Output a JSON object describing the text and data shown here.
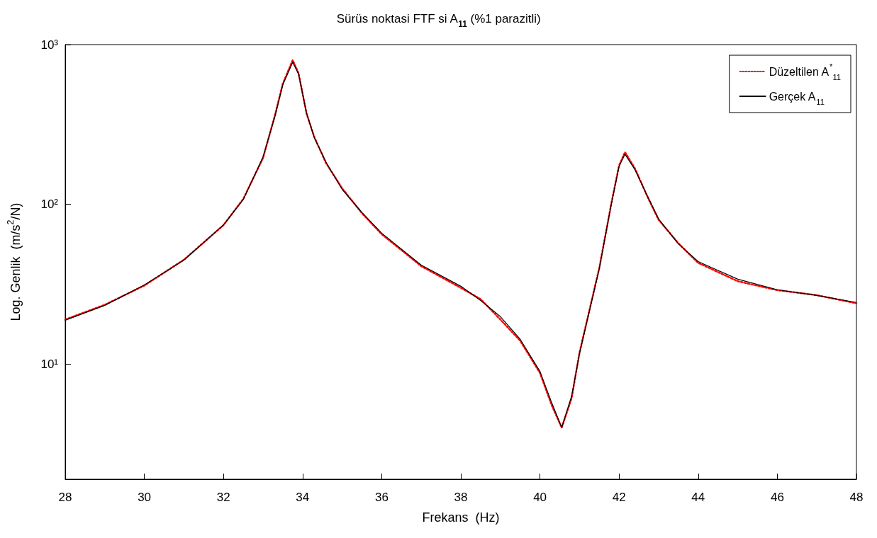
{
  "chart_data": {
    "type": "line",
    "title": "Sürüs noktasi FTF si A$_{11}$ (%1 parazitli)",
    "xlabel": "Frekans  (Hz)",
    "ylabel": "Log. Genlik  (m/s$^{2}$/N)",
    "log": "y",
    "grid": false,
    "legend": "top right",
    "marker": "none",
    "xlim": [
      28,
      48
    ],
    "xticks": [
      28,
      30,
      32,
      34,
      36,
      38,
      40,
      42,
      44,
      46,
      48
    ],
    "ylim": [
      1.9,
      1000
    ],
    "yticks": [
      {
        "value": 10,
        "label": "10¹"
      },
      {
        "value": 100,
        "label": "10²"
      },
      {
        "value": 1000,
        "label": "10³"
      }
    ],
    "x": [
      28,
      29,
      30,
      31,
      32,
      32.5,
      33,
      33.3,
      33.5,
      33.75,
      33.9,
      34.1,
      34.3,
      34.6,
      35,
      35.5,
      36,
      37,
      38,
      38.5,
      39,
      39.5,
      40,
      40.3,
      40.55,
      40.8,
      41,
      41.5,
      41.8,
      42,
      42.15,
      42.4,
      42.7,
      43,
      43.5,
      44,
      45,
      46,
      47,
      48
    ],
    "series": [
      {
        "name": "Düzeltilen A$^{*}$$_{11}$",
        "color": "#ff0000",
        "line_style": "dotted",
        "values": [
          19,
          23.5,
          31,
          45,
          74,
          108,
          195,
          360,
          570,
          800,
          660,
          370,
          262,
          180,
          126,
          88,
          65,
          41,
          30,
          25.5,
          19,
          14,
          8.8,
          5.5,
          4.0,
          6.1,
          11.8,
          40,
          100,
          175,
          212,
          168,
          114,
          80,
          57,
          43,
          33,
          29,
          27,
          24
        ]
      },
      {
        "name": "Gerçek A$_{11}$",
        "color": "#000000",
        "line_style": "solid",
        "values": [
          18.8,
          23.3,
          31.3,
          44.7,
          74.4,
          107,
          198,
          354,
          560,
          775,
          651,
          372,
          260,
          182,
          124,
          89,
          66,
          41.6,
          30.7,
          25,
          19.8,
          14.3,
          9.0,
          5.7,
          4.0,
          6.3,
          11.6,
          39.5,
          99,
          173,
          206,
          165,
          115,
          81,
          56.5,
          43.8,
          34,
          29.2,
          26.9,
          24.3
        ]
      }
    ]
  }
}
